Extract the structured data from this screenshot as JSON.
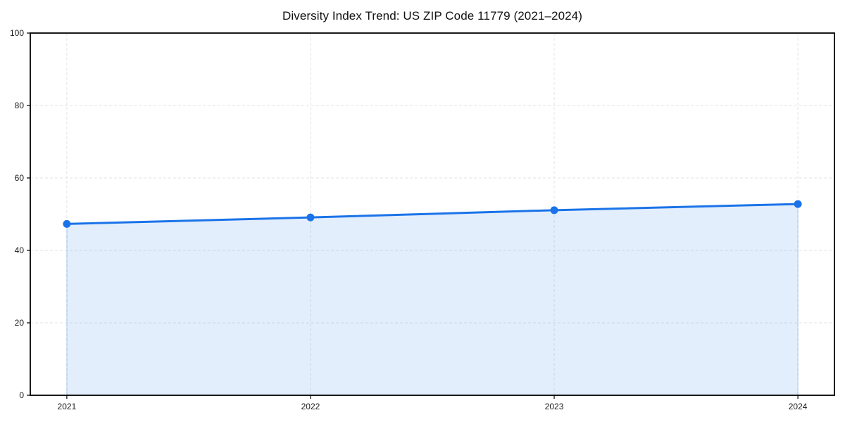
{
  "chart_data": {
    "type": "area",
    "title": "Diversity Index Trend: US ZIP Code 11779 (2021–2024)",
    "x": [
      2021,
      2022,
      2023,
      2024
    ],
    "x_tick_labels": [
      "2021",
      "2022",
      "2023",
      "2024"
    ],
    "series": [
      {
        "name": "Diversity Index",
        "values": [
          47.3,
          49.1,
          51.1,
          52.8
        ]
      }
    ],
    "xlabel": "",
    "ylabel": "",
    "xlim": [
      2020.85,
      2024.15
    ],
    "ylim": [
      0,
      100
    ],
    "yticks": [
      0,
      20,
      40,
      60,
      80,
      100
    ],
    "grid": true,
    "grid_style": "dashed",
    "legend_position": "none",
    "colors": {
      "line": "#1a73e8",
      "marker": "#1a73e8",
      "fill": "rgba(26,115,232,0.12)",
      "fill_edge": "rgba(26,115,232,0.30)",
      "grid": "#e3e3e3",
      "axis_border": "#000000",
      "tick_text": "#1a1a1a"
    }
  }
}
